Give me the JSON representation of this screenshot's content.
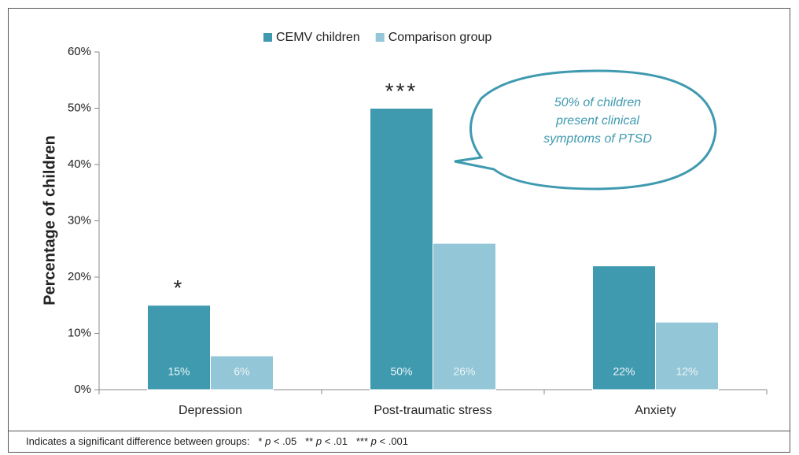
{
  "chart_data": {
    "type": "bar",
    "y_label": "Percentage of children",
    "categories": [
      "Depression",
      "Post-traumatic stress",
      "Anxiety"
    ],
    "series": [
      {
        "name": "CEMV children",
        "color": "#3f9ab0",
        "values": [
          15,
          50,
          22
        ],
        "value_labels": [
          "15%",
          "50%",
          "22%"
        ]
      },
      {
        "name": "Comparison group",
        "color": "#93c6d7",
        "values": [
          6,
          26,
          12
        ],
        "value_labels": [
          "6%",
          "26%",
          "12%"
        ]
      }
    ],
    "significance": [
      "*",
      "***",
      null
    ],
    "ylim": [
      0,
      60
    ],
    "yticks": [
      {
        "value": 0,
        "label": "0%"
      },
      {
        "value": 10,
        "label": "10%"
      },
      {
        "value": 20,
        "label": "20%"
      },
      {
        "value": 30,
        "label": "30%"
      },
      {
        "value": 40,
        "label": "40%"
      },
      {
        "value": 50,
        "label": "50%"
      },
      {
        "value": 60,
        "label": "60%"
      }
    ],
    "legend": "top",
    "callout": [
      "50% of children",
      "present clinical",
      "symptoms of PTSD"
    ],
    "footnote": {
      "text": "Indicates a significant difference between groups:",
      "items": [
        {
          "stars": "*",
          "p": "p",
          "threshold": "< .05"
        },
        {
          "stars": "**",
          "p": "p",
          "threshold": "< .01"
        },
        {
          "stars": "***",
          "p": "p",
          "threshold": "< .001"
        }
      ]
    }
  }
}
